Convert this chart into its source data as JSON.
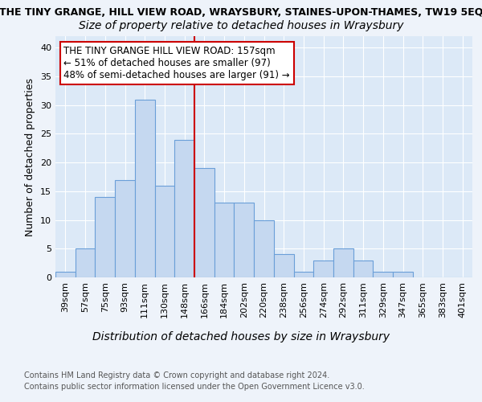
{
  "title_top": "THE TINY GRANGE, HILL VIEW ROAD, WRAYSBURY, STAINES-UPON-THAMES, TW19 5EQ",
  "title_sub": "Size of property relative to detached houses in Wraysbury",
  "xlabel": "Distribution of detached houses by size in Wraysbury",
  "ylabel": "Number of detached properties",
  "categories": [
    "39sqm",
    "57sqm",
    "75sqm",
    "93sqm",
    "111sqm",
    "130sqm",
    "148sqm",
    "166sqm",
    "184sqm",
    "202sqm",
    "220sqm",
    "238sqm",
    "256sqm",
    "274sqm",
    "292sqm",
    "311sqm",
    "329sqm",
    "347sqm",
    "365sqm",
    "383sqm",
    "401sqm"
  ],
  "bar_heights": [
    1,
    5,
    14,
    17,
    31,
    16,
    24,
    19,
    13,
    13,
    10,
    4,
    1,
    3,
    5,
    3,
    1,
    1,
    0,
    0,
    0
  ],
  "bar_color": "#c5d8f0",
  "bar_edge_color": "#6a9fd8",
  "bar_edge_width": 0.8,
  "vline_color": "#cc0000",
  "vline_linewidth": 1.5,
  "annotation_text": "THE TINY GRANGE HILL VIEW ROAD: 157sqm\n← 51% of detached houses are smaller (97)\n48% of semi-detached houses are larger (91) →",
  "annotation_box_color": "white",
  "annotation_box_edge": "#cc0000",
  "ylim": [
    0,
    42
  ],
  "yticks": [
    0,
    5,
    10,
    15,
    20,
    25,
    30,
    35,
    40
  ],
  "bg_color": "#eef3fa",
  "plot_bg_color": "#dce9f7",
  "grid_color": "white",
  "footer_line1": "Contains HM Land Registry data © Crown copyright and database right 2024.",
  "footer_line2": "Contains public sector information licensed under the Open Government Licence v3.0.",
  "title_fontsize": 9,
  "sub_fontsize": 10,
  "ylabel_fontsize": 9,
  "xlabel_fontsize": 10,
  "tick_fontsize": 8,
  "annot_fontsize": 8.5,
  "footer_fontsize": 7
}
